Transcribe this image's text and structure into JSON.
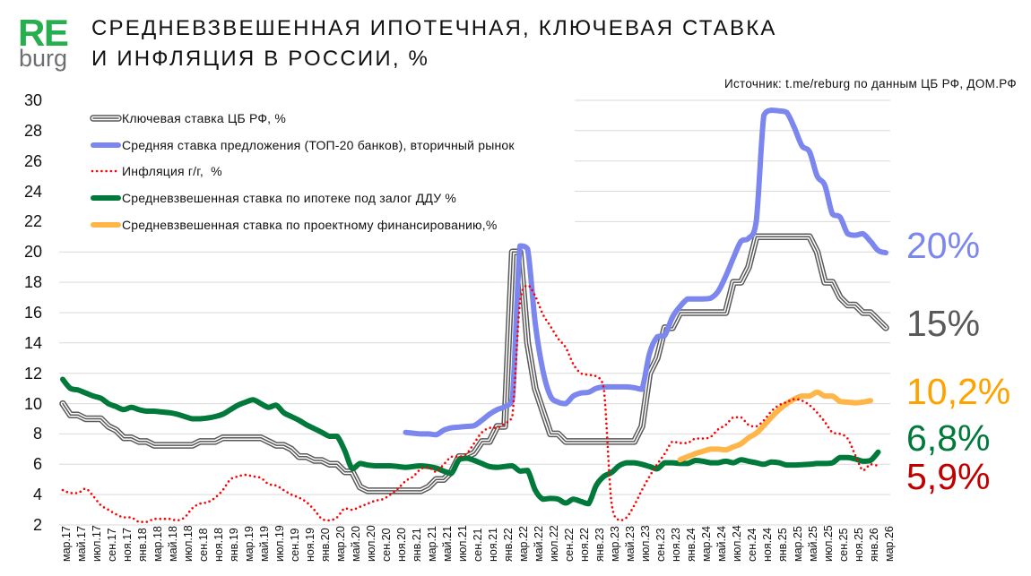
{
  "logo": {
    "top": "RE",
    "bottom": "burg",
    "color": "#27AE4F",
    "bottom_color": "#6D6E71"
  },
  "header": {
    "title_line1": "СРЕДНЕВЗВЕШЕННАЯ ИПОТЕЧНАЯ, КЛЮЧЕВАЯ СТАВКА",
    "title_line2": "И ИНФЛЯЦИЯ В РОССИИ, %",
    "source": "Источник: t.me/reburg по данным ЦБ РФ, ДОМ.РФ"
  },
  "end_labels": [
    {
      "text": "20%",
      "color": "#7B86EE",
      "series": "offer_rate"
    },
    {
      "text": "15%",
      "color": "#595959",
      "series": "key_rate"
    },
    {
      "text": "10,2%",
      "color": "#FFA200",
      "series": "project_finance"
    },
    {
      "text": "6,8%",
      "color": "#00793A",
      "series": "ddu_mortgage"
    },
    {
      "text": "5,9%",
      "color": "#C00000",
      "series": "inflation"
    }
  ],
  "chart_data": {
    "type": "line",
    "title": "СРЕДНЕВЗВЕШЕННАЯ ИПОТЕЧНАЯ, КЛЮЧЕВАЯ СТАВКА И ИНФЛЯЦИЯ В РОССИИ, %",
    "xlabel": "",
    "ylabel": "%",
    "ylim": [
      2,
      30
    ],
    "y_ticks": [
      30,
      28,
      26,
      24,
      22,
      20,
      18,
      16,
      14,
      12,
      10,
      8,
      6,
      4,
      2
    ],
    "grid": true,
    "grid_color": "#D9D9D9",
    "legend_position": "top-left",
    "x_tick_step": 2,
    "x_tick_labels": [
      "мар.17",
      "май.17",
      "июл.17",
      "сен.17",
      "ноя.17",
      "янв.18",
      "мар.18",
      "май.18",
      "июл.18",
      "сен.18",
      "ноя.18",
      "янв.19",
      "мар.19",
      "май.19",
      "июл.19",
      "сен.19",
      "ноя.19",
      "янв.20",
      "мар.20",
      "май.20",
      "июл.20",
      "сен.20",
      "ноя.20",
      "янв.21",
      "мар.21",
      "май.21",
      "июл.21",
      "сен.21",
      "ноя.21",
      "янв.22",
      "мар.22",
      "май.22",
      "июл.22",
      "сен.22",
      "ноя.22",
      "янв.23",
      "мар.23",
      "май.23",
      "июл.23",
      "сен.23",
      "ноя.23",
      "янв.24",
      "мар.24",
      "май.24",
      "июл.24",
      "сен.24",
      "ноя.24",
      "янв.25",
      "мар.25",
      "май.25",
      "июл.25",
      "сен.25",
      "ноя.25",
      "янв.26",
      "мар.26"
    ],
    "categories": [
      "мар.17",
      "апр.17",
      "май.17",
      "июн.17",
      "июл.17",
      "авг.17",
      "сен.17",
      "окт.17",
      "ноя.17",
      "дек.17",
      "янв.18",
      "фев.18",
      "мар.18",
      "апр.18",
      "май.18",
      "июн.18",
      "июл.18",
      "авг.18",
      "сен.18",
      "окт.18",
      "ноя.18",
      "дек.18",
      "янв.19",
      "фев.19",
      "мар.19",
      "апр.19",
      "май.19",
      "июн.19",
      "июл.19",
      "авг.19",
      "сен.19",
      "окт.19",
      "ноя.19",
      "дек.19",
      "янв.20",
      "фев.20",
      "мар.20",
      "апр.20",
      "май.20",
      "июн.20",
      "июл.20",
      "авг.20",
      "сен.20",
      "окт.20",
      "ноя.20",
      "дек.20",
      "янв.21",
      "фев.21",
      "мар.21",
      "апр.21",
      "май.21",
      "июн.21",
      "июл.21",
      "авг.21",
      "сен.21",
      "окт.21",
      "ноя.21",
      "дек.21",
      "янв.22",
      "фев.22",
      "мар.22",
      "апр.22",
      "май.22",
      "июн.22",
      "июл.22",
      "авг.22",
      "сен.22",
      "окт.22",
      "ноя.22",
      "дек.22",
      "янв.23",
      "фев.23",
      "мар.23",
      "апр.23",
      "май.23",
      "июн.23",
      "июл.23",
      "авг.23",
      "сен.23",
      "окт.23",
      "ноя.23",
      "дек.23",
      "янв.24",
      "фев.24",
      "мар.24",
      "апр.24",
      "май.24",
      "июн.24",
      "июл.24",
      "авг.24",
      "сен.24",
      "окт.24",
      "ноя.24",
      "дек.24",
      "янв.25",
      "фев.25",
      "мар.25",
      "апр.25",
      "май.25",
      "июн.25",
      "июл.25",
      "авг.25",
      "сен.25",
      "окт.25",
      "ноя.25",
      "дек.25",
      "янв.26",
      "фев.26",
      "мар.26"
    ],
    "series": [
      {
        "id": "key_rate",
        "name": "Ключевая ставка ЦБ РФ, %",
        "color": "#595959",
        "style": "double",
        "values": [
          10.0,
          9.25,
          9.25,
          9.0,
          9.0,
          9.0,
          8.5,
          8.25,
          7.75,
          7.75,
          7.5,
          7.5,
          7.25,
          7.25,
          7.25,
          7.25,
          7.25,
          7.25,
          7.5,
          7.5,
          7.5,
          7.75,
          7.75,
          7.75,
          7.75,
          7.75,
          7.75,
          7.5,
          7.25,
          7.25,
          7.0,
          6.5,
          6.5,
          6.25,
          6.25,
          6.0,
          6.0,
          5.5,
          5.5,
          4.5,
          4.25,
          4.25,
          4.25,
          4.25,
          4.25,
          4.25,
          4.25,
          4.25,
          4.5,
          5.0,
          5.0,
          5.5,
          6.5,
          6.5,
          6.75,
          7.5,
          7.5,
          8.5,
          8.5,
          20,
          20,
          14,
          11,
          9.5,
          8,
          8,
          7.5,
          7.5,
          7.5,
          7.5,
          7.5,
          7.5,
          7.5,
          7.5,
          7.5,
          7.5,
          8.5,
          12,
          13,
          15,
          15,
          16,
          16,
          16,
          16,
          16,
          16,
          16,
          18,
          18,
          19,
          21,
          21,
          21,
          21,
          21,
          21,
          21,
          21,
          20,
          18,
          18,
          17,
          16.5,
          16.5,
          16,
          16,
          15.5,
          15
        ]
      },
      {
        "id": "offer_rate",
        "name": "Средняя ставка предложения (ТОП-20 банков), вторичный рынок",
        "color": "#7B86EE",
        "style": "solid",
        "values": [
          null,
          null,
          null,
          null,
          null,
          null,
          null,
          null,
          null,
          null,
          null,
          null,
          null,
          null,
          null,
          null,
          null,
          null,
          null,
          null,
          null,
          null,
          null,
          null,
          null,
          null,
          null,
          null,
          null,
          null,
          null,
          null,
          null,
          null,
          null,
          null,
          null,
          null,
          null,
          null,
          null,
          null,
          null,
          null,
          null,
          8.1,
          8.05,
          8.0,
          8.0,
          7.95,
          8.25,
          8.4,
          8.45,
          8.5,
          8.55,
          8.9,
          9.3,
          9.6,
          9.8,
          10.3,
          20.4,
          20.2,
          15.3,
          12.2,
          10.5,
          10.1,
          10.0,
          10.5,
          10.7,
          10.75,
          11.0,
          11.1,
          11.1,
          11.1,
          11.1,
          11.05,
          10.95,
          13.3,
          14.4,
          14.5,
          15.7,
          16.4,
          16.9,
          16.9,
          16.9,
          16.95,
          17.4,
          18.4,
          19.6,
          20.7,
          20.9,
          22.0,
          29.0,
          29.35,
          29.3,
          29.2,
          28.2,
          27.0,
          26.6,
          25.0,
          24.4,
          22.5,
          22.3,
          21.2,
          21.1,
          21.2,
          20.7,
          20.1,
          19.95
        ]
      },
      {
        "id": "inflation",
        "name": "Инфляция г/г,  %",
        "color": "#FF0000",
        "style": "dotted",
        "values": [
          4.3,
          4.1,
          4.1,
          4.4,
          3.9,
          3.3,
          3.0,
          2.7,
          2.5,
          2.5,
          2.2,
          2.2,
          2.4,
          2.4,
          2.4,
          2.3,
          2.5,
          3.1,
          3.4,
          3.5,
          3.8,
          4.3,
          5.0,
          5.2,
          5.3,
          5.2,
          5.1,
          4.7,
          4.6,
          4.3,
          4.0,
          3.8,
          3.5,
          3.0,
          2.4,
          2.3,
          2.5,
          3.1,
          3.0,
          3.2,
          3.4,
          3.6,
          3.7,
          4.0,
          4.4,
          4.9,
          5.2,
          5.7,
          5.8,
          5.5,
          6.0,
          6.5,
          6.5,
          6.7,
          7.4,
          8.1,
          8.4,
          8.4,
          8.7,
          9.2,
          16.7,
          17.8,
          17.1,
          15.9,
          15.1,
          14.3,
          13.7,
          12.6,
          12.0,
          11.9,
          11.8,
          11.0,
          3.5,
          2.3,
          2.5,
          3.3,
          4.3,
          5.2,
          6.0,
          6.7,
          7.5,
          7.4,
          7.4,
          7.7,
          7.7,
          7.8,
          8.3,
          8.6,
          9.1,
          9.1,
          8.6,
          8.5,
          8.9,
          9.5,
          9.9,
          10.1,
          10.3,
          10.2,
          9.9,
          9.4,
          8.8,
          8.1,
          8.0,
          7.7,
          6.6,
          5.6,
          6.0,
          5.9,
          null
        ]
      },
      {
        "id": "ddu_mortgage",
        "name": "Средневзвешенная ставка по ипотеке под залог ДДУ %",
        "color": "#00793A",
        "style": "solid",
        "values": [
          11.6,
          11.0,
          10.9,
          10.7,
          10.5,
          10.35,
          10.0,
          9.8,
          9.6,
          9.75,
          9.6,
          9.5,
          9.5,
          9.45,
          9.4,
          9.3,
          9.15,
          9.0,
          9.0,
          9.05,
          9.15,
          9.3,
          9.6,
          9.9,
          10.1,
          10.25,
          10.0,
          9.75,
          9.9,
          9.4,
          9.15,
          8.9,
          8.6,
          8.35,
          8.1,
          7.85,
          7.85,
          6.9,
          5.7,
          6.05,
          5.95,
          5.9,
          5.9,
          5.9,
          5.85,
          5.8,
          5.85,
          5.9,
          5.85,
          5.75,
          5.55,
          5.4,
          6.3,
          6.4,
          6.25,
          6.05,
          5.85,
          5.8,
          5.85,
          5.9,
          5.55,
          5.6,
          4.3,
          3.7,
          3.75,
          3.7,
          3.45,
          3.7,
          3.55,
          3.4,
          4.6,
          5.2,
          5.45,
          5.9,
          6.1,
          6.1,
          6.0,
          5.85,
          5.7,
          6.1,
          6.1,
          6.05,
          6.05,
          6.25,
          6.2,
          6.1,
          6.1,
          6.2,
          6.1,
          6.3,
          6.2,
          6.1,
          6.0,
          6.15,
          6.1,
          5.95,
          5.95,
          5.97,
          6.0,
          6.05,
          6.05,
          6.1,
          6.45,
          6.45,
          6.35,
          6.2,
          6.25,
          6.8,
          null
        ]
      },
      {
        "id": "project_finance",
        "name": "Средневзвешенная ставка по проектному финансированию,%",
        "color": "#FFB547",
        "style": "solid",
        "values": [
          null,
          null,
          null,
          null,
          null,
          null,
          null,
          null,
          null,
          null,
          null,
          null,
          null,
          null,
          null,
          null,
          null,
          null,
          null,
          null,
          null,
          null,
          null,
          null,
          null,
          null,
          null,
          null,
          null,
          null,
          null,
          null,
          null,
          null,
          null,
          null,
          null,
          null,
          null,
          null,
          null,
          null,
          null,
          null,
          null,
          null,
          null,
          null,
          null,
          null,
          null,
          null,
          null,
          null,
          null,
          null,
          null,
          null,
          null,
          null,
          null,
          null,
          null,
          null,
          null,
          null,
          null,
          null,
          null,
          null,
          null,
          null,
          null,
          null,
          null,
          null,
          null,
          null,
          null,
          null,
          null,
          6.3,
          6.5,
          6.7,
          6.85,
          7.0,
          7.0,
          6.95,
          7.15,
          7.35,
          7.75,
          8.05,
          8.55,
          9.1,
          9.6,
          10.0,
          10.3,
          10.5,
          10.5,
          10.75,
          10.5,
          10.5,
          10.15,
          10.1,
          10.05,
          10.1,
          10.2,
          null,
          null
        ]
      }
    ],
    "annotations": [
      "20%",
      "15%",
      "10,2%",
      "6,8%",
      "5,9%"
    ]
  }
}
